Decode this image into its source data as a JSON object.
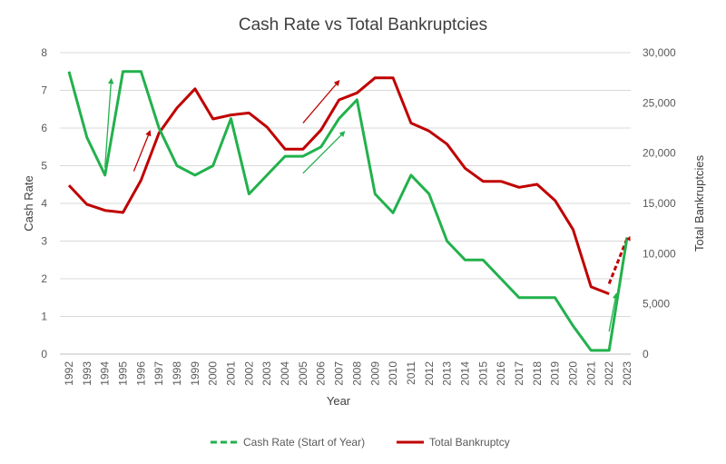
{
  "chart_data": {
    "type": "line",
    "title": "Cash Rate vs Total Bankruptcies",
    "xlabel": "Year",
    "ylabel": "Cash Rate",
    "y2label": "Total Bankruptcies",
    "ylim": [
      0,
      8
    ],
    "y2lim": [
      0,
      30000
    ],
    "y_ticks": [
      "0",
      "1",
      "2",
      "3",
      "4",
      "5",
      "6",
      "7",
      "8"
    ],
    "y2_ticks": [
      "0",
      "5,000",
      "10,000",
      "15,000",
      "20,000",
      "25,000",
      "30,000"
    ],
    "x": [
      "1992",
      "1993",
      "1994",
      "1995",
      "1996",
      "1997",
      "1998",
      "1999",
      "2000",
      "2001",
      "2002",
      "2003",
      "2004",
      "2005",
      "2006",
      "2007",
      "2008",
      "2009",
      "2010",
      "2011",
      "2012",
      "2013",
      "2014",
      "2015",
      "2016",
      "2017",
      "2018",
      "2019",
      "2020",
      "2021",
      "2022",
      "2023"
    ],
    "grid": "horizontal",
    "legend_position": "bottom",
    "colors": {
      "cash_rate": "#22b14c",
      "bankruptcies": "#c00000"
    },
    "series": [
      {
        "name": "Cash Rate (Start of Year)",
        "axis": "left",
        "values": [
          7.5,
          5.75,
          4.75,
          7.5,
          7.5,
          6.0,
          5.0,
          4.75,
          5.0,
          6.25,
          4.25,
          4.75,
          5.25,
          5.25,
          5.5,
          6.25,
          6.75,
          4.25,
          3.75,
          4.75,
          4.25,
          3.0,
          2.5,
          2.5,
          2.0,
          1.5,
          1.5,
          1.5,
          0.75,
          0.1,
          0.1,
          3.1
        ]
      },
      {
        "name": "Total Bankruptcy",
        "axis": "right",
        "values": [
          16800,
          14900,
          14300,
          14100,
          17300,
          22000,
          24500,
          26400,
          23400,
          23800,
          24000,
          22600,
          20400,
          20400,
          22300,
          25300,
          26000,
          27500,
          27500,
          23000,
          22200,
          20900,
          18500,
          17200,
          17200,
          16600,
          16900,
          15300,
          12400,
          6700,
          6000,
          null
        ],
        "projection": [
          null,
          null,
          null,
          null,
          null,
          null,
          null,
          null,
          null,
          null,
          null,
          null,
          null,
          null,
          null,
          null,
          null,
          null,
          null,
          null,
          null,
          null,
          null,
          null,
          null,
          null,
          null,
          null,
          null,
          null,
          7000,
          11500
        ]
      }
    ],
    "annotations": [
      {
        "series": "cash_rate",
        "from": [
          1994.0,
          4.95
        ],
        "to": [
          1994.35,
          7.3
        ]
      },
      {
        "series": "bankruptcies",
        "from": [
          1995.6,
          18200
        ],
        "to": [
          1996.5,
          22200
        ]
      },
      {
        "series": "bankruptcies",
        "from": [
          2005.0,
          23000
        ],
        "to": [
          2007.0,
          27200
        ]
      },
      {
        "series": "cash_rate",
        "from": [
          2005.0,
          4.8
        ],
        "to": [
          2007.3,
          5.9
        ]
      },
      {
        "series": "cash_rate",
        "from": [
          2022.0,
          0.6
        ],
        "to": [
          2022.4,
          1.6
        ]
      }
    ]
  }
}
